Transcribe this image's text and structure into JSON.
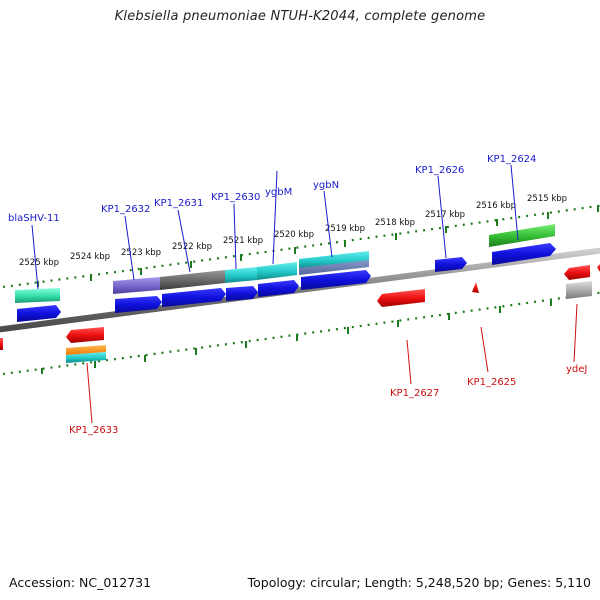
{
  "title": "Klebsiella pneumoniae NTUH-K2044, complete genome",
  "footer": {
    "accession": "Accession: NC_012731",
    "topology": "Topology: circular; Length: 5,248,520 bp; Genes: 5,110"
  },
  "scale": {
    "unit": "kbp",
    "ticks": [
      "2525 kbp",
      "2524 kbp",
      "2523 kbp",
      "2522 kbp",
      "2521 kbp",
      "2520 kbp",
      "2519 kbp",
      "2518 kbp",
      "2517 kbp",
      "2516 kbp",
      "2515 kbp"
    ]
  },
  "genes_forward": [
    "blaSHV-11",
    "KP1_2632",
    "KP1_2631",
    "KP1_2630",
    "ygbM",
    "ygbN",
    "KP1_2626",
    "KP1_2624"
  ],
  "genes_reverse": [
    "KP1_2633",
    "KP1_2627",
    "KP1_2625",
    "ydeJ"
  ],
  "colors": {
    "forward_label": "#1a1acc",
    "reverse_label": "#cc1111",
    "cds": "#1111dd",
    "reverse_cds": "#ee1111",
    "tick_green": "#1e7a1e",
    "backbone": "#7a7a7a",
    "cog_cyan": "#22c8c8",
    "cog_green": "#33bb33",
    "cog_mint": "#33ddaa",
    "cog_purple": "#7766cc",
    "cog_gray": "#666666",
    "cog_orange": "#ff8800",
    "cog_silver": "#aaaaaa"
  }
}
